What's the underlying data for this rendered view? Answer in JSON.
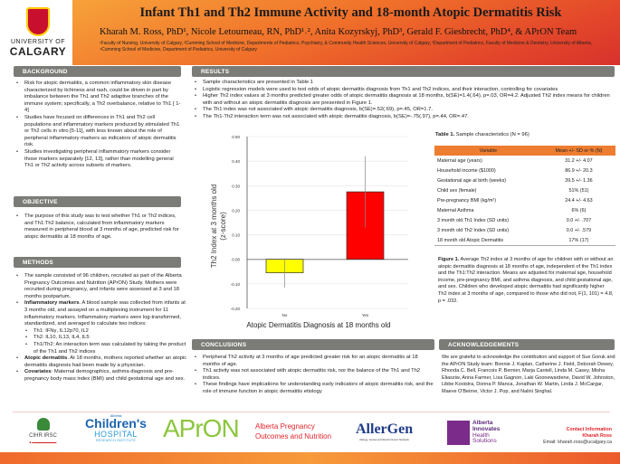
{
  "header": {
    "title": "Infant Th1 and Th2 Immune Activity and 18-month Atopic Dermatitis Risk",
    "authors": "Kharah M. Ross, PhD¹, Nicole Letourneau, RN, PhD¹˒², Anita Kozyrskyj, PhD³, Gerald F. Giesbrecht, PhD⁴, & APrON Team",
    "affiliations": "¹Faculty of Nursing, University of Calgary, ²Cumming School of Medicine, Departments of Pediatrics, Psychiatry, & Community Health Sciences, University of Calgary, ³Department of Pediatrics, Faculty of Medicine & Dentistry, University of Alberta, ⁴Cumming School of Medicine, Department of Pediatrics, University of Calgary",
    "logo_line1": "UNIVERSITY OF",
    "logo_line2": "CALGARY"
  },
  "background": {
    "heading": "BACKGROUND",
    "bullets": [
      "Risk for atopic dermatitis, a common inflammatory skin disease characterized by itchiness and rash, could be driven in part by imbalance between the Th1 and Th2 adaptive branches of the immune system; specifically, a Th2 overbalance, relative to Th1 [ 1-4]",
      "Studies have focused on differences in Th1 and Th2 cell populations and inflammatory markers produced by stimulated Th1 or Th2 cells in vitro [5-11], with less known about the role of peripheral inflammatory markers as indicators of atopic dermatitis risk.",
      "Studies investigating peripheral inflammatory markers consider those markers separately [12, 13], rather than modelling general Th1 or Th2 activity across subsets of markers."
    ]
  },
  "objective": {
    "heading": "OBJECTIVE",
    "bullets": [
      "The purpose of this study was to test whether Th1 or Th2 indices, and Th1:Th2 balance, calculated from inflammatory markers measured in peripheral blood at 3 months of age, predicted risk for atopic dermatitis at 18 months of age."
    ]
  },
  "methods": {
    "heading": "METHODS",
    "b1": "The sample consisted of 96 children, recruited as part of the Alberta Pregnancy Outcomes and Nutrition (APrON) Study. Mothers were recruited during pregnancy, and infants were assessed at 3 and 18 months postpartum.",
    "b2_bold": "Inflammatory markers",
    "b2": ". A blood sample was collected from infants at 3 months old, and assayed on a multiplexing instrument for 11 inflammatory markers. Inflammatory markers were log-transformed, standardized, and averaged to calculate two indices:",
    "sub": [
      "Th1: IFNγ, IL12p70, IL2",
      "Th2: IL10, IL13, IL4, IL5",
      "Th1/Th2: An interaction term was calculated by taking the product of the Th1 and Th2 indices"
    ],
    "b3_bold": "Atopic dermatitis",
    "b3": ". At 18 months, mothers reported whether an atopic dermatitis diagnosis had been made by a physician.",
    "b4_bold": "Covariates",
    "b4": ": Maternal demographics, asthma diagnosis and pre-pregnancy body mass index (BMI) and child gestational age and sex."
  },
  "results": {
    "heading": "RESULTS",
    "bullets": [
      "Sample characteristics are presented in Table 1",
      "Logistic regression models were used to test odds of atopic dermatitis diagnosis from Th1 and Th2 indices, and their interaction, controlling for covariates",
      "Higher Th2 index values at 3 months predicted greater odds of atopic dermatitis diagnosis at 18 months, b(SE)=1.4(.64), p=.03, OR=4.2. Adjusted Th2 index means for children with and without an atopic dermatitis diagnosis are presented in Figure 1.",
      "The Th1 index was not associated with atopic dermatitis diagnosis, b(SE)=.52(.69), p=.45, OR=1.7.",
      "The Th1-Th2 interaction term was not associated with atopic dermatitis diagnosis, b(SE)=-.75(.97), p=.44, OR=.47."
    ]
  },
  "table": {
    "caption_bold": "Table 1.",
    "caption": " Sample characteristics (N = 96)",
    "headers": [
      "Variable",
      "Mean +/- SD or % (N)"
    ],
    "rows": [
      [
        "Maternal age (years)",
        "31.2 +/- 4.07"
      ],
      [
        "Household income ($1000)",
        "86.9 +/- 20.3"
      ],
      [
        "Gestational age at birth (weeks)",
        "39.5 +/- 1.36"
      ],
      [
        "Child sex (female)",
        "51% (51)"
      ],
      [
        "Pre-pregnancy BMI (kg/m²)",
        "24.4 +/- 4.63"
      ],
      [
        "Maternal Asthma",
        "6% (6)"
      ],
      [
        "3 month old Th1 Index (SD units)",
        "0.0 +/- .707"
      ],
      [
        "3 month old Th2 Index (SD units)",
        "0.0 +/- .579"
      ],
      [
        "18 month old Atopic Dermatitis",
        "17% (17)"
      ]
    ]
  },
  "figure_caption": {
    "bold": "Figure 1.",
    "text": " Average Th2 index at 3 months of age for children with or without an atopic dermatitis diagnosis at 18 months of age, independent of the Th1 index and the Th1:Th2 interaction. Means are adjusted for maternal age, household income, pre-pregnancy BMI, and asthma diagnosis, and child gestational age, and sex. Children who developed atopic dermatitis had significantly higher Th2 index at 3 months of age, compared to those who did not, F(1, 101) = 4.8, p = .032."
  },
  "chart_data": {
    "type": "bar",
    "categories": [
      "No",
      "Yes"
    ],
    "values": [
      -0.055,
      0.275
    ],
    "error_low": [
      -0.115,
      0.13
    ],
    "error_high": [
      0.005,
      0.42
    ],
    "colors": [
      "#ffff00",
      "#ff0000"
    ],
    "ylim": [
      -0.2,
      0.5
    ],
    "yticks": [
      "0.50",
      "0.40",
      "0.30",
      "0.20",
      "0.10",
      "0.00",
      "-0.10",
      "-0.20"
    ],
    "xlabel": "Atopic Dermatitis Diagnosis at 18 months old",
    "ylabel": "Th2 Index at 3 months old",
    "ylabel2": "(z-score)",
    "grid": true
  },
  "conclusions": {
    "heading": "CONCLUSIONS",
    "bullets": [
      "Peripheral Th2 activity at 3 months of age predicted greater risk for an atopic dermatitis at 18 months of age.",
      "Th1 activity was not associated with atopic dermatitis risk, nor the balance of the Th1 and Th2 indices.",
      "These findings have implications for understanding early indicators of atopic dermatitis risk, and the role of immune function in atopic dermatitis etiology"
    ]
  },
  "acknowledgements": {
    "heading": "ACKNOWLEDGEMENTS",
    "text": "We are grateful to acknowledge the contribution and support of Sue Goruk and the APrON Study team:  Bonnie J. Kaplan, Catherine J. Field, Deborah Dewey, Rhonda C. Bell, Francois P. Bernier, Marja Cantell, Linda M. Casey, Misha Eliasziw, Anna Farmer, Lisa Gagnon, Laki Goonewardene, David W. Johnston, Libbe Kooistra, Donna P. Manca, Jonathan W. Martin, Linda J. McCargar, Maeve O'Beirne, Victor J. Pop, and Nalini Singhal."
  },
  "logos": {
    "cihr": "CIHR IRSC",
    "childrens_1": "Children's",
    "childrens_2": "HOSPITAL",
    "childrens_3": "RESEARCH INSTITUTE",
    "childrens_alberta": "Alberta",
    "apron": "APrON",
    "apron_1": "Alberta Pregnancy",
    "apron_2": "Outcomes and Nutrition",
    "allergen": "AllerGen",
    "allergen_sub": "Allergy, Genes and Environment Network",
    "ai_1": "Alberta",
    "ai_2": "Innovates",
    "ai_3": "Health",
    "ai_4": "Solutions"
  },
  "contact": {
    "heading": "Contact Information",
    "name": "Kharah Ross",
    "email": "Email: kharah.ross@ucalgary.ca"
  }
}
